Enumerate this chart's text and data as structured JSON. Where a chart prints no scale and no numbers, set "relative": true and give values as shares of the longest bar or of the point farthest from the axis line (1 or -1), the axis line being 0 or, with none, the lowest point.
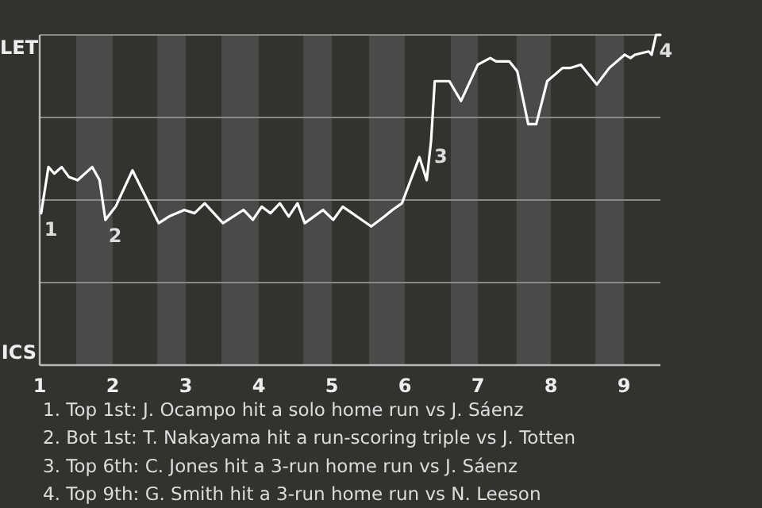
{
  "chart_data": {
    "type": "line",
    "relative": true,
    "x": [
      1.02,
      1.12,
      1.2,
      1.3,
      1.4,
      1.52,
      1.72,
      1.82,
      1.9,
      2.04,
      2.27,
      2.63,
      2.77,
      2.98,
      3.12,
      3.26,
      3.51,
      3.79,
      3.92,
      4.04,
      4.16,
      4.29,
      4.41,
      4.53,
      4.63,
      4.88,
      5.02,
      5.15,
      5.54,
      5.72,
      5.83,
      5.96,
      6.2,
      6.3,
      6.36,
      6.41,
      6.61,
      6.77,
      7,
      7.17,
      7.25,
      7.43,
      7.54,
      7.69,
      7.8,
      7.95,
      8.16,
      8.27,
      8.41,
      8.63,
      8.8,
      9.01,
      9.09,
      9.15,
      9.34,
      9.38,
      9.44,
      9.5
    ],
    "series": [
      {
        "color": "#ffffff",
        "values": [
          0.46,
          0.6,
          0.58,
          0.6,
          0.57,
          0.56,
          0.6,
          0.56,
          0.44,
          0.48,
          0.59,
          0.43,
          0.45,
          0.47,
          0.46,
          0.49,
          0.43,
          0.47,
          0.44,
          0.48,
          0.46,
          0.49,
          0.45,
          0.49,
          0.43,
          0.47,
          0.44,
          0.48,
          0.42,
          0.45,
          0.47,
          0.49,
          0.63,
          0.56,
          0.68,
          0.86,
          0.86,
          0.8,
          0.91,
          0.93,
          0.92,
          0.92,
          0.89,
          0.73,
          0.73,
          0.86,
          0.9,
          0.9,
          0.91,
          0.85,
          0.9,
          0.94,
          0.93,
          0.94,
          0.95,
          0.94,
          1,
          1
        ]
      }
    ],
    "xlim": [
      1,
      9.5
    ],
    "xticks": [
      1,
      2,
      3,
      4,
      5,
      6,
      7,
      8,
      9
    ],
    "grid": "y",
    "marker": "none",
    "line_style": "solid",
    "bands": [
      {
        "axis": "x",
        "from": 1.5,
        "to": 2,
        "color": "#4b4a49"
      },
      {
        "axis": "x",
        "from": 2.61,
        "to": 3,
        "color": "#4b4a49"
      },
      {
        "axis": "x",
        "from": 3.49,
        "to": 4,
        "color": "#4b4a49"
      },
      {
        "axis": "x",
        "from": 4.61,
        "to": 5,
        "color": "#4b4a49"
      },
      {
        "axis": "x",
        "from": 5.51,
        "to": 6,
        "color": "#4b4a49"
      },
      {
        "axis": "x",
        "from": 6.63,
        "to": 7,
        "color": "#4b4a49"
      },
      {
        "axis": "x",
        "from": 7.53,
        "to": 8,
        "color": "#4b4a49"
      },
      {
        "axis": "x",
        "from": 8.61,
        "to": 9,
        "color": "#4b4a49"
      }
    ],
    "annotations": [
      "LET",
      "ICS",
      {
        "text": "1",
        "x": 1.02,
        "y": 0.46
      },
      {
        "text": "2",
        "x": 1.9,
        "y": 0.44
      },
      {
        "text": "3",
        "x": 6.36,
        "y": 0.68
      },
      {
        "text": "4",
        "x": 9.44,
        "y": 1
      },
      "1. Top 1st: J. Ocampo hit a solo home run vs J. Sáenz",
      "2. Bot 1st: T. Nakayama hit a run-scoring triple vs J. Totten",
      "3. Top 6th: C. Jones hit a 3-run home run vs J. Sáenz",
      "4. Top 9th: G. Smith hit a 3-run home run vs N. Leeson"
    ]
  }
}
